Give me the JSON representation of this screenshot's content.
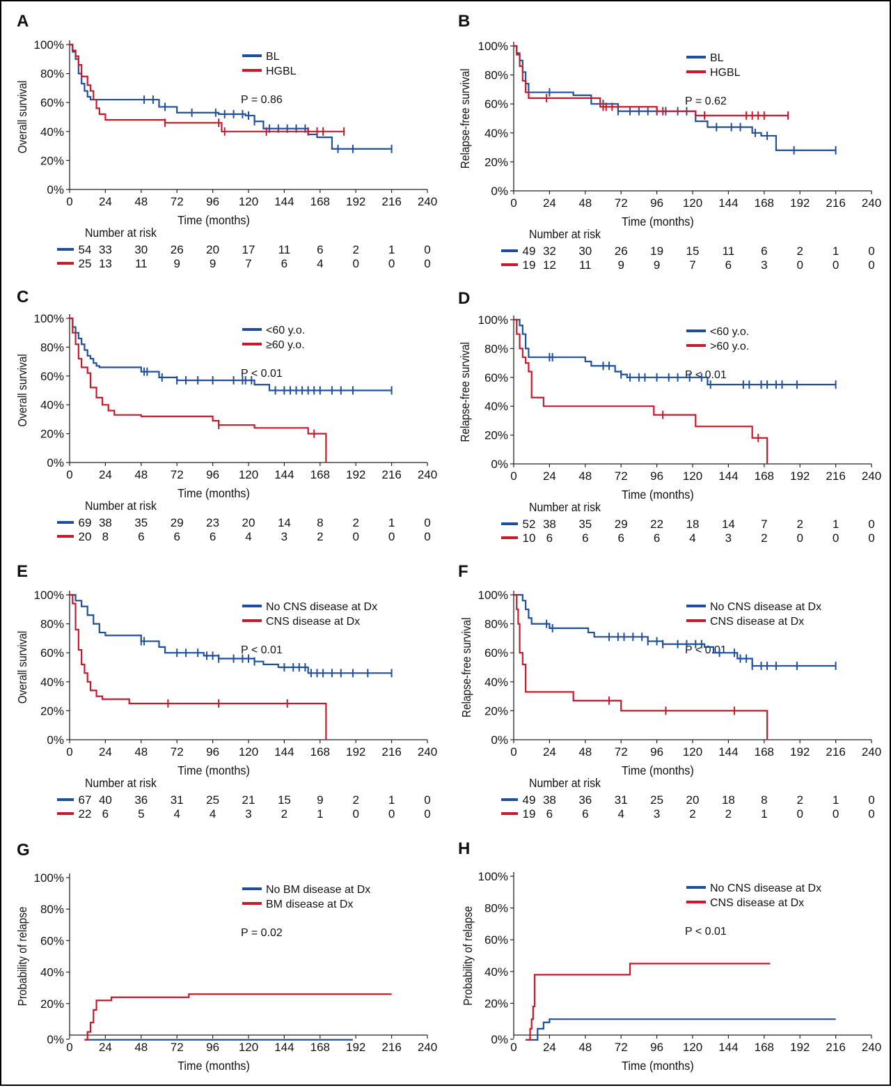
{
  "colors": {
    "blue": "#1f4e9c",
    "red": "#c8192b",
    "axis": "#222222"
  },
  "chart_data": [
    {
      "panel": "A",
      "type": "line",
      "ylabel": "Overall survival",
      "xlabel": "Time (months)",
      "xticks": [
        "0",
        "24",
        "48",
        "72",
        "96",
        "120",
        "144",
        "168",
        "192",
        "216",
        "240"
      ],
      "yticks": [
        "0%",
        "20%",
        "40%",
        "60%",
        "80%",
        "100%"
      ],
      "xlim": [
        0,
        240
      ],
      "ylim": [
        0,
        100
      ],
      "pvalue": "P = 0.86",
      "risk_title": "Number at risk",
      "series": [
        {
          "name": "BL",
          "color": "blue",
          "x": [
            0,
            2,
            4,
            6,
            8,
            10,
            12,
            14,
            60,
            72,
            100,
            118,
            124,
            130,
            136,
            160,
            166,
            176,
            216
          ],
          "y": [
            100,
            95,
            90,
            80,
            73,
            68,
            64,
            62,
            57,
            53,
            52,
            51,
            47,
            42,
            42,
            38,
            36,
            28,
            28
          ],
          "censor_x": [
            50,
            56,
            64,
            82,
            98,
            104,
            110,
            116,
            120,
            124,
            134,
            140,
            146,
            152,
            158,
            180,
            190,
            216
          ],
          "risk": [
            "54",
            "33",
            "30",
            "26",
            "20",
            "17",
            "11",
            "6",
            "2",
            "1",
            "0"
          ]
        },
        {
          "name": "HGBL",
          "color": "red",
          "x": [
            0,
            2,
            4,
            6,
            8,
            12,
            14,
            16,
            18,
            20,
            24,
            64,
            102,
            130,
            150,
            184
          ],
          "y": [
            100,
            96,
            92,
            86,
            78,
            72,
            68,
            62,
            56,
            52,
            48,
            46,
            40,
            40,
            40,
            40
          ],
          "censor_x": [
            64,
            100,
            104,
            132,
            160,
            166,
            170,
            184
          ],
          "risk": [
            "25",
            "13",
            "11",
            "9",
            "9",
            "7",
            "6",
            "4",
            "0",
            "0",
            "0"
          ]
        }
      ]
    },
    {
      "panel": "B",
      "type": "line",
      "ylabel": "Relapse-free survival",
      "xlabel": "Time (months)",
      "xticks": [
        "0",
        "24",
        "48",
        "72",
        "96",
        "120",
        "144",
        "168",
        "192",
        "216",
        "240"
      ],
      "yticks": [
        "0%",
        "20%",
        "40%",
        "60%",
        "80%",
        "100%"
      ],
      "xlim": [
        0,
        240
      ],
      "ylim": [
        0,
        100
      ],
      "pvalue": "P = 0.62",
      "risk_title": "Number at risk",
      "series": [
        {
          "name": "BL",
          "color": "blue",
          "x": [
            0,
            2,
            4,
            6,
            8,
            10,
            40,
            52,
            70,
            94,
            122,
            130,
            144,
            160,
            166,
            176,
            216
          ],
          "y": [
            100,
            95,
            90,
            82,
            74,
            68,
            66,
            60,
            55,
            55,
            48,
            44,
            44,
            40,
            38,
            28,
            28
          ],
          "censor_x": [
            24,
            60,
            70,
            78,
            84,
            90,
            96,
            102,
            110,
            116,
            136,
            146,
            152,
            162,
            170,
            188,
            216
          ],
          "risk": [
            "49",
            "32",
            "30",
            "26",
            "19",
            "15",
            "11",
            "6",
            "2",
            "1",
            "0"
          ]
        },
        {
          "name": "HGBL",
          "color": "red",
          "x": [
            0,
            2,
            4,
            6,
            8,
            10,
            50,
            58,
            96,
            122,
            184
          ],
          "y": [
            100,
            94,
            86,
            76,
            68,
            64,
            64,
            58,
            55,
            52,
            52
          ],
          "censor_x": [
            22,
            60,
            62,
            66,
            96,
            100,
            128,
            156,
            160,
            164,
            168,
            184
          ],
          "risk": [
            "19",
            "12",
            "11",
            "9",
            "9",
            "7",
            "6",
            "3",
            "0",
            "0",
            "0"
          ]
        }
      ]
    },
    {
      "panel": "C",
      "type": "line",
      "ylabel": "Overall survival",
      "xlabel": "Time (months)",
      "xticks": [
        "0",
        "24",
        "48",
        "72",
        "96",
        "120",
        "144",
        "168",
        "192",
        "216",
        "240"
      ],
      "yticks": [
        "0%",
        "20%",
        "40%",
        "60%",
        "80%",
        "100%"
      ],
      "xlim": [
        0,
        240
      ],
      "ylim": [
        0,
        100
      ],
      "pvalue": "P < 0.01",
      "risk_title": "Number at risk",
      "series": [
        {
          "name": "<60 y.o.",
          "color": "blue",
          "x": [
            0,
            2,
            4,
            6,
            8,
            10,
            12,
            14,
            16,
            18,
            20,
            48,
            60,
            72,
            124,
            134,
            216
          ],
          "y": [
            100,
            94,
            90,
            86,
            82,
            78,
            74,
            72,
            69,
            67,
            66,
            63,
            59,
            57,
            54,
            50,
            50
          ],
          "censor_x": [
            50,
            52,
            62,
            72,
            78,
            86,
            96,
            110,
            116,
            118,
            122,
            138,
            144,
            148,
            152,
            156,
            160,
            164,
            168,
            176,
            182,
            190,
            216
          ],
          "risk": [
            "69",
            "38",
            "35",
            "29",
            "23",
            "20",
            "14",
            "8",
            "2",
            "1",
            "0"
          ]
        },
        {
          "name": "≥60 y.o.",
          "color": "red",
          "x": [
            0,
            2,
            4,
            6,
            8,
            12,
            14,
            18,
            22,
            26,
            30,
            48,
            96,
            100,
            124,
            160,
            172,
            172
          ],
          "y": [
            100,
            90,
            82,
            72,
            66,
            62,
            52,
            45,
            40,
            36,
            33,
            32,
            29,
            26,
            24,
            20,
            14,
            0
          ],
          "censor_x": [
            100,
            164
          ],
          "risk": [
            "20",
            "8",
            "6",
            "6",
            "6",
            "4",
            "3",
            "2",
            "0",
            "0",
            "0"
          ]
        }
      ]
    },
    {
      "panel": "D",
      "type": "line",
      "ylabel": "Relapse-free survival",
      "xlabel": "Time (months)",
      "xticks": [
        "0",
        "24",
        "48",
        "72",
        "96",
        "120",
        "144",
        "168",
        "192",
        "216",
        "240"
      ],
      "yticks": [
        "0%",
        "20%",
        "40%",
        "60%",
        "80%",
        "100%"
      ],
      "xlim": [
        0,
        240
      ],
      "ylim": [
        0,
        100
      ],
      "pvalue": "P < 0.01",
      "risk_title": "Number at risk",
      "series": [
        {
          "name": "<60 y.o.",
          "color": "blue",
          "x": [
            0,
            4,
            6,
            8,
            10,
            38,
            48,
            52,
            68,
            72,
            76,
            130,
            216
          ],
          "y": [
            100,
            96,
            90,
            80,
            74,
            74,
            71,
            68,
            64,
            62,
            60,
            55,
            55
          ],
          "censor_x": [
            24,
            26,
            60,
            64,
            72,
            78,
            84,
            88,
            96,
            104,
            110,
            118,
            126,
            132,
            154,
            158,
            166,
            170,
            176,
            180,
            190,
            216
          ],
          "risk": [
            "52",
            "38",
            "35",
            "29",
            "22",
            "18",
            "14",
            "7",
            "2",
            "1",
            "0"
          ]
        },
        {
          "name": ">60 y.o.",
          "color": "red",
          "x": [
            0,
            2,
            4,
            6,
            8,
            10,
            12,
            20,
            94,
            122,
            160,
            170,
            170
          ],
          "y": [
            100,
            90,
            80,
            74,
            70,
            64,
            46,
            40,
            34,
            26,
            18,
            18,
            0
          ],
          "censor_x": [
            100,
            164
          ],
          "risk": [
            "10",
            "6",
            "6",
            "6",
            "6",
            "4",
            "3",
            "2",
            "0",
            "0",
            "0"
          ]
        }
      ]
    },
    {
      "panel": "E",
      "type": "line",
      "ylabel": "Overall survival",
      "xlabel": "Time (months)",
      "xticks": [
        "0",
        "24",
        "48",
        "72",
        "96",
        "120",
        "144",
        "168",
        "192",
        "216",
        "240"
      ],
      "yticks": [
        "0%",
        "20%",
        "40%",
        "60%",
        "80%",
        "100%"
      ],
      "xlim": [
        0,
        240
      ],
      "ylim": [
        0,
        100
      ],
      "pvalue": "P < 0.01",
      "risk_title": "Number at risk",
      "series": [
        {
          "name": "No CNS disease at Dx",
          "color": "blue",
          "x": [
            0,
            4,
            8,
            12,
            16,
            20,
            24,
            48,
            60,
            64,
            90,
            100,
            124,
            130,
            140,
            160,
            216
          ],
          "y": [
            100,
            96,
            92,
            86,
            80,
            74,
            72,
            68,
            64,
            60,
            58,
            56,
            54,
            52,
            50,
            46,
            46
          ],
          "censor_x": [
            48,
            50,
            72,
            78,
            86,
            92,
            96,
            100,
            110,
            116,
            120,
            124,
            144,
            150,
            154,
            158,
            162,
            166,
            170,
            176,
            182,
            190,
            200,
            216
          ],
          "risk": [
            "67",
            "40",
            "36",
            "31",
            "25",
            "21",
            "15",
            "9",
            "2",
            "1",
            "0"
          ]
        },
        {
          "name": "CNS disease at Dx",
          "color": "red",
          "x": [
            0,
            2,
            4,
            6,
            8,
            10,
            12,
            14,
            18,
            22,
            40,
            172,
            172
          ],
          "y": [
            100,
            94,
            76,
            62,
            52,
            46,
            40,
            34,
            30,
            28,
            25,
            25,
            0
          ],
          "censor_x": [
            66,
            100,
            146
          ],
          "risk": [
            "22",
            "6",
            "5",
            "4",
            "4",
            "3",
            "2",
            "1",
            "0",
            "0",
            "0"
          ]
        }
      ]
    },
    {
      "panel": "F",
      "type": "line",
      "ylabel": "Relapse-free survival",
      "xlabel": "Time (months)",
      "xticks": [
        "0",
        "24",
        "48",
        "72",
        "96",
        "120",
        "144",
        "168",
        "192",
        "216",
        "240"
      ],
      "yticks": [
        "0%",
        "20%",
        "40%",
        "60%",
        "80%",
        "100%"
      ],
      "xlim": [
        0,
        240
      ],
      "ylim": [
        0,
        100
      ],
      "pvalue": "P < 0.01",
      "risk_title": "Number at risk",
      "series": [
        {
          "name": "No CNS disease at Dx",
          "color": "blue",
          "x": [
            0,
            6,
            8,
            10,
            12,
            24,
            50,
            54,
            90,
            100,
            128,
            134,
            150,
            160,
            216
          ],
          "y": [
            100,
            96,
            90,
            84,
            80,
            77,
            74,
            71,
            68,
            66,
            64,
            60,
            56,
            51,
            51
          ],
          "censor_x": [
            22,
            26,
            64,
            70,
            74,
            80,
            86,
            90,
            96,
            100,
            110,
            116,
            122,
            126,
            138,
            148,
            152,
            156,
            160,
            166,
            170,
            176,
            190,
            216
          ],
          "risk": [
            "49",
            "38",
            "36",
            "31",
            "25",
            "20",
            "18",
            "8",
            "2",
            "1",
            "0"
          ]
        },
        {
          "name": "CNS disease at Dx",
          "color": "red",
          "x": [
            0,
            2,
            3,
            4,
            6,
            8,
            40,
            72,
            170,
            170
          ],
          "y": [
            100,
            90,
            80,
            60,
            52,
            33,
            27,
            20,
            20,
            0
          ],
          "censor_x": [
            64,
            102,
            148
          ],
          "risk": [
            "19",
            "6",
            "6",
            "4",
            "3",
            "2",
            "2",
            "1",
            "0",
            "0",
            "0"
          ]
        }
      ]
    },
    {
      "panel": "G",
      "type": "line",
      "ylabel": "Probability of relapse",
      "xlabel": "Time (months)",
      "xticks": [
        "0",
        "24",
        "48",
        "72",
        "96",
        "120",
        "144",
        "168",
        "192",
        "216",
        "240"
      ],
      "yticks": [
        "0%",
        "20%",
        "40%",
        "60%",
        "80%",
        "100%"
      ],
      "xlim": [
        0,
        240
      ],
      "ylim": [
        0,
        100
      ],
      "pvalue": "P = 0.02",
      "series": [
        {
          "name": "No BM disease at Dx",
          "color": "blue",
          "x": [
            10,
            190
          ],
          "y": [
            -3,
            -3
          ],
          "censor_x": []
        },
        {
          "name": "BM disease at Dx",
          "color": "red",
          "x": [
            10,
            12,
            14,
            16,
            18,
            28,
            80,
            216
          ],
          "y": [
            -3,
            2,
            8,
            16,
            22,
            24,
            26,
            26
          ],
          "censor_x": []
        }
      ]
    },
    {
      "panel": "H",
      "type": "line",
      "ylabel": "Probability of relapse",
      "xlabel": "Time (months)",
      "xticks": [
        "0",
        "24",
        "48",
        "72",
        "96",
        "120",
        "144",
        "168",
        "192",
        "216",
        "240"
      ],
      "yticks": [
        "0%",
        "20%",
        "40%",
        "60%",
        "80%",
        "100%"
      ],
      "xlim": [
        0,
        240
      ],
      "ylim": [
        0,
        100
      ],
      "pvalue": "P < 0.01",
      "series": [
        {
          "name": "No CNS disease at Dx",
          "color": "blue",
          "x": [
            8,
            14,
            16,
            20,
            24,
            216
          ],
          "y": [
            -3,
            -3,
            4,
            8,
            10,
            10
          ],
          "censor_x": []
        },
        {
          "name": "CNS disease at Dx",
          "color": "red",
          "x": [
            8,
            11,
            12,
            13,
            14,
            78,
            172
          ],
          "y": [
            -3,
            4,
            10,
            18,
            38,
            45,
            45
          ],
          "censor_x": []
        }
      ]
    }
  ]
}
